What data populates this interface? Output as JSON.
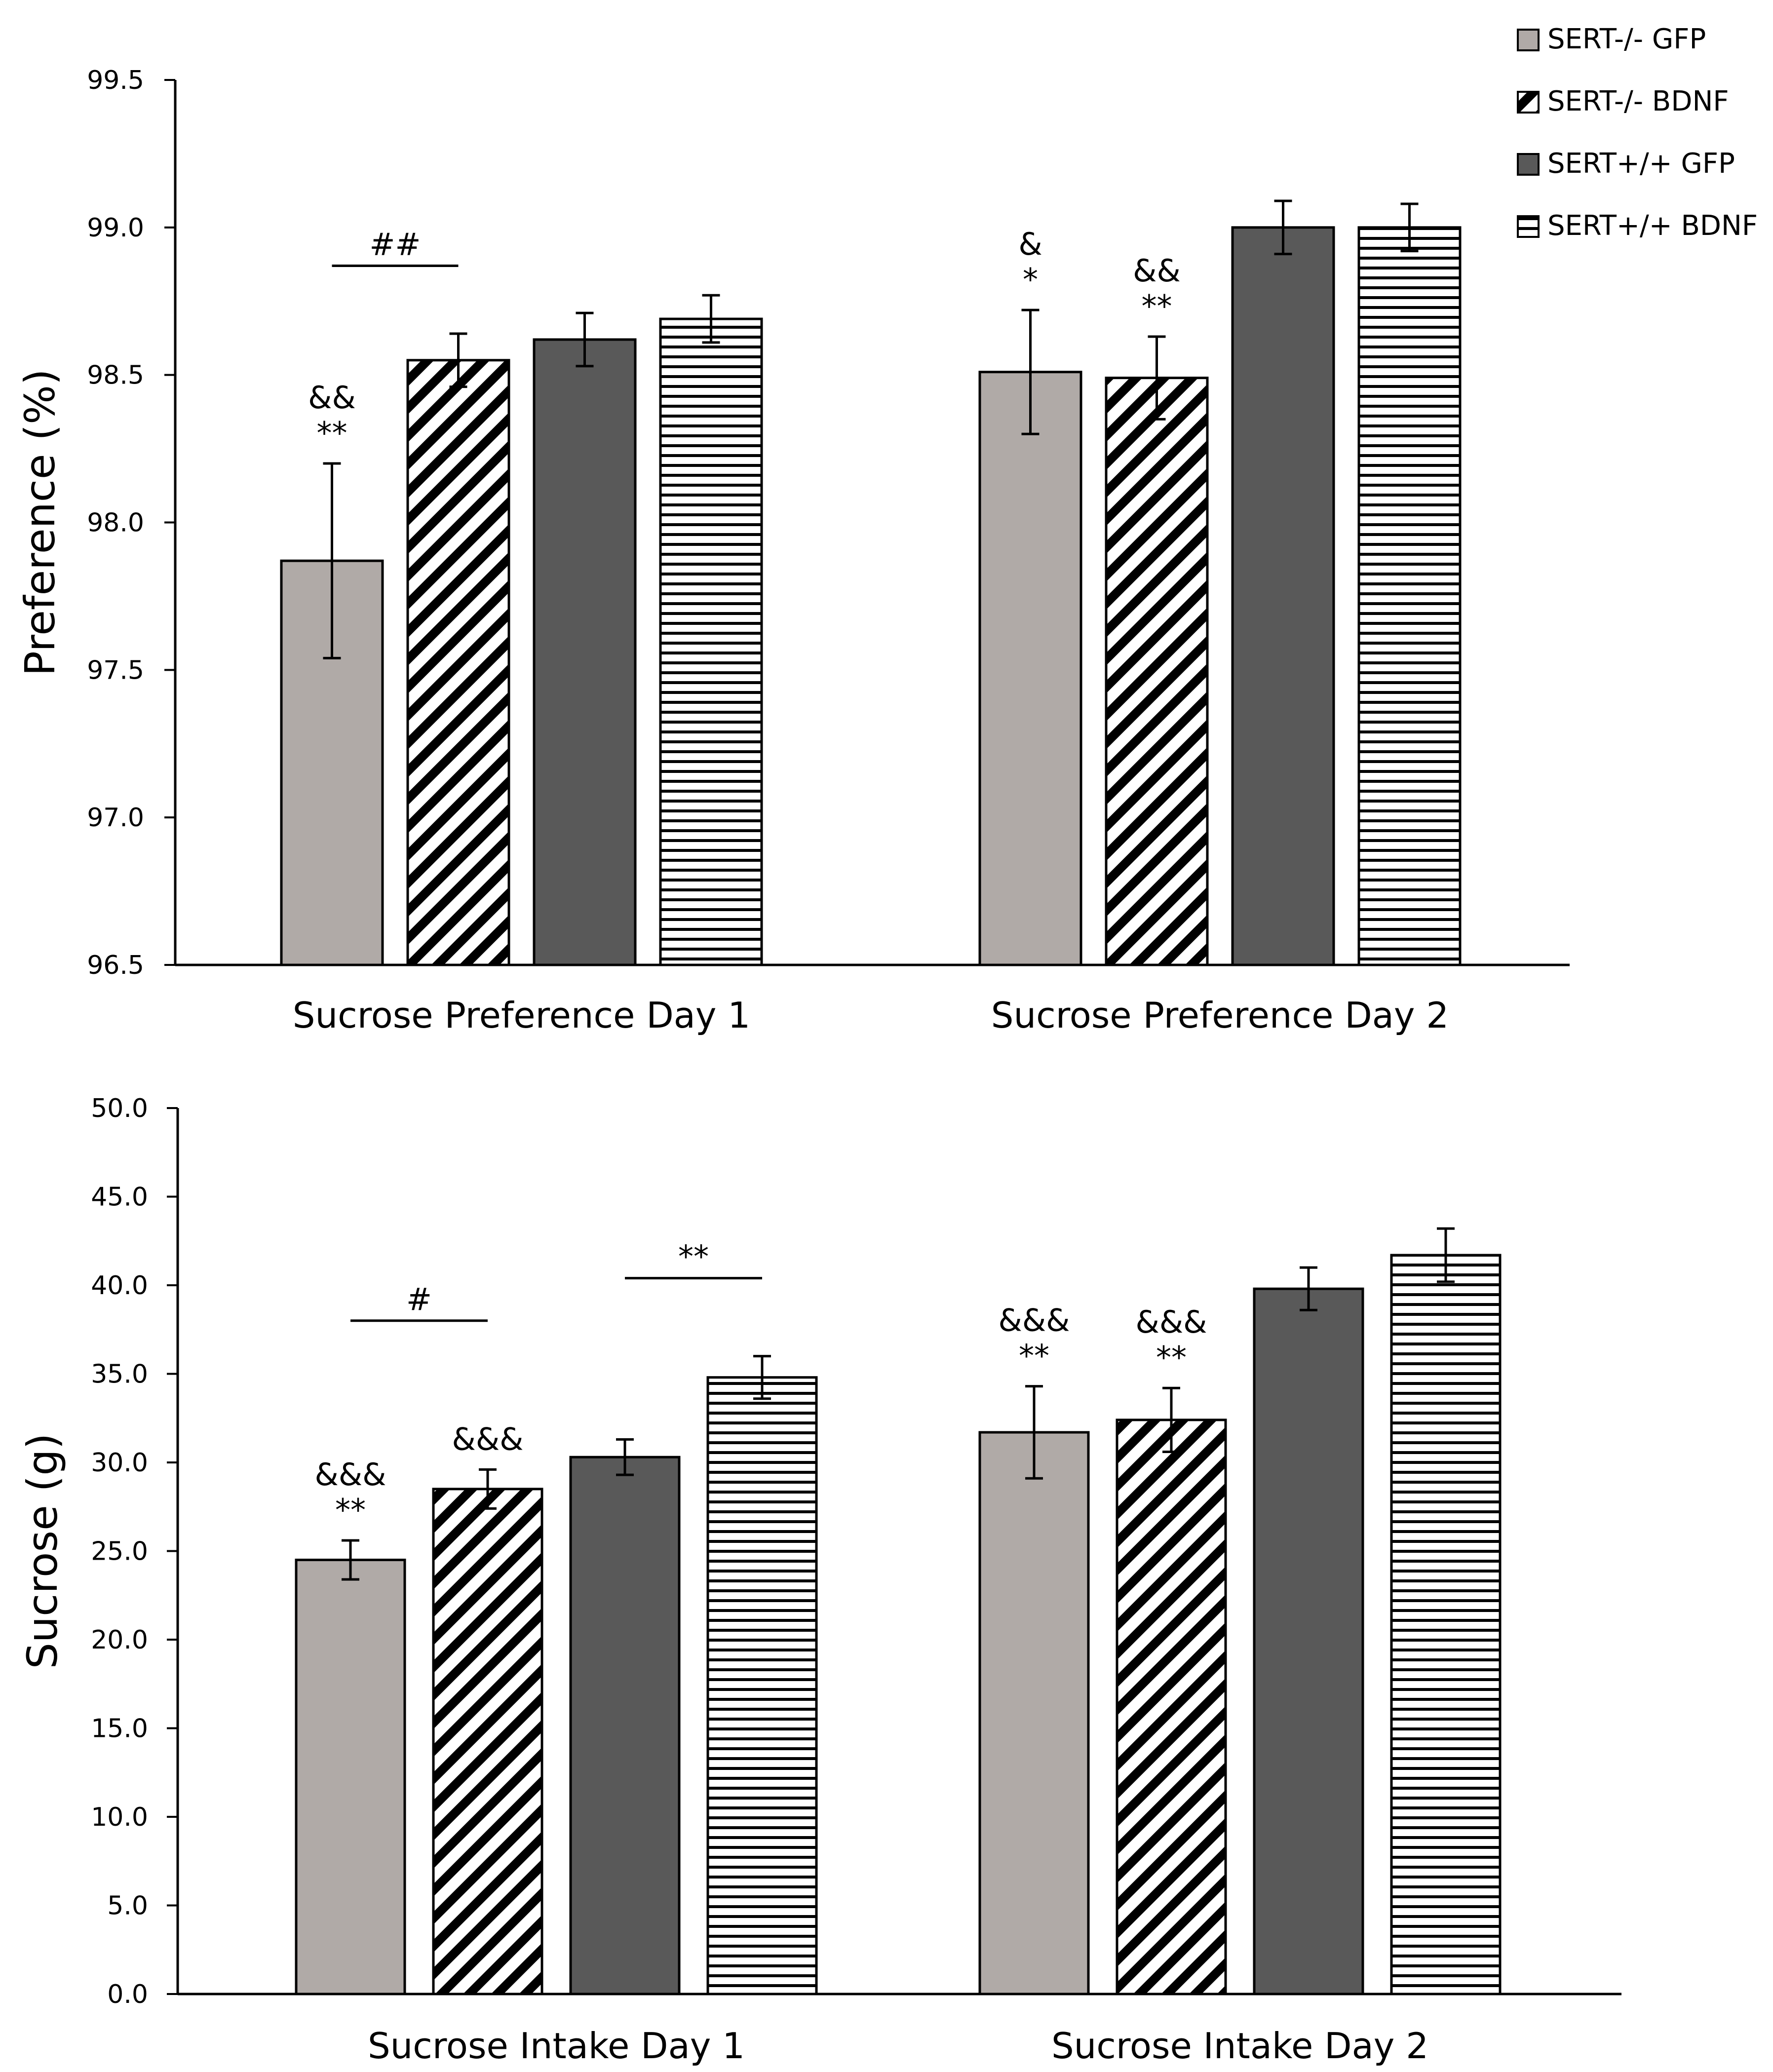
{
  "legend": [
    {
      "label": "SERT-/-  GFP",
      "pattern": "solid",
      "color": "#b0aaa7"
    },
    {
      "label": "SERT-/- BDNF",
      "pattern": "diagonal",
      "color": "#000000"
    },
    {
      "label": "SERT+/+  GFP",
      "pattern": "solid",
      "color": "#595959"
    },
    {
      "label": "SERT+/+  BDNF",
      "pattern": "horizontal",
      "color": "#000000"
    }
  ],
  "chart_data": [
    {
      "type": "bar",
      "ylabel": "Preference (%)",
      "xlabel": "",
      "ylim": [
        96.5,
        99.5
      ],
      "yticks": [
        "96.5",
        "97.0",
        "97.5",
        "98.0",
        "98.5",
        "99.0",
        "99.5"
      ],
      "categories": [
        "Sucrose Preference Day 1",
        "Sucrose Preference Day 2"
      ],
      "series": [
        {
          "name": "SERT-/-  GFP",
          "values": [
            97.87,
            98.51
          ],
          "errors": [
            0.33,
            0.21
          ]
        },
        {
          "name": "SERT-/- BDNF",
          "values": [
            98.55,
            98.49
          ],
          "errors": [
            0.09,
            0.14
          ]
        },
        {
          "name": "SERT+/+  GFP",
          "values": [
            98.62,
            99.0
          ],
          "errors": [
            0.09,
            0.09
          ]
        },
        {
          "name": "SERT+/+  BDNF",
          "values": [
            98.69,
            99.0
          ],
          "errors": [
            0.08,
            0.08
          ]
        }
      ],
      "bar_annotations": [
        {
          "category": 0,
          "series": 0,
          "lines": [
            "&&",
            "**"
          ]
        },
        {
          "category": 1,
          "series": 0,
          "lines": [
            "&",
            "*"
          ]
        },
        {
          "category": 1,
          "series": 1,
          "lines": [
            "&&",
            "**"
          ]
        }
      ],
      "brackets": [
        {
          "category": 0,
          "from_series": 0,
          "to_series": 1,
          "value": 98.87,
          "label": "##"
        }
      ]
    },
    {
      "type": "bar",
      "ylabel": "Sucrose (g)",
      "xlabel": "",
      "ylim": [
        0,
        50
      ],
      "yticks": [
        "0.0",
        "5.0",
        "10.0",
        "15.0",
        "20.0",
        "25.0",
        "30.0",
        "35.0",
        "40.0",
        "45.0",
        "50.0"
      ],
      "categories": [
        "Sucrose Intake Day 1",
        "Sucrose Intake Day 2"
      ],
      "series": [
        {
          "name": "SERT-/-  GFP",
          "values": [
            24.5,
            31.7
          ],
          "errors": [
            1.1,
            2.6
          ]
        },
        {
          "name": "SERT-/- BDNF",
          "values": [
            28.5,
            32.4
          ],
          "errors": [
            1.1,
            1.8
          ]
        },
        {
          "name": "SERT+/+  GFP",
          "values": [
            30.3,
            39.8
          ],
          "errors": [
            1.0,
            1.2
          ]
        },
        {
          "name": "SERT+/+  BDNF",
          "values": [
            34.8,
            41.7
          ],
          "errors": [
            1.2,
            1.5
          ]
        }
      ],
      "bar_annotations": [
        {
          "category": 0,
          "series": 0,
          "lines": [
            "&&&",
            "**"
          ]
        },
        {
          "category": 0,
          "series": 1,
          "lines": [
            "&&&"
          ]
        },
        {
          "category": 1,
          "series": 0,
          "lines": [
            "&&&",
            "**"
          ]
        },
        {
          "category": 1,
          "series": 1,
          "lines": [
            "&&&",
            "**"
          ]
        }
      ],
      "brackets": [
        {
          "category": 0,
          "from_series": 0,
          "to_series": 1,
          "value": 38.0,
          "label": "#"
        },
        {
          "category": 0,
          "from_series": 2,
          "to_series": 3,
          "value": 40.4,
          "label": "**"
        }
      ]
    }
  ]
}
